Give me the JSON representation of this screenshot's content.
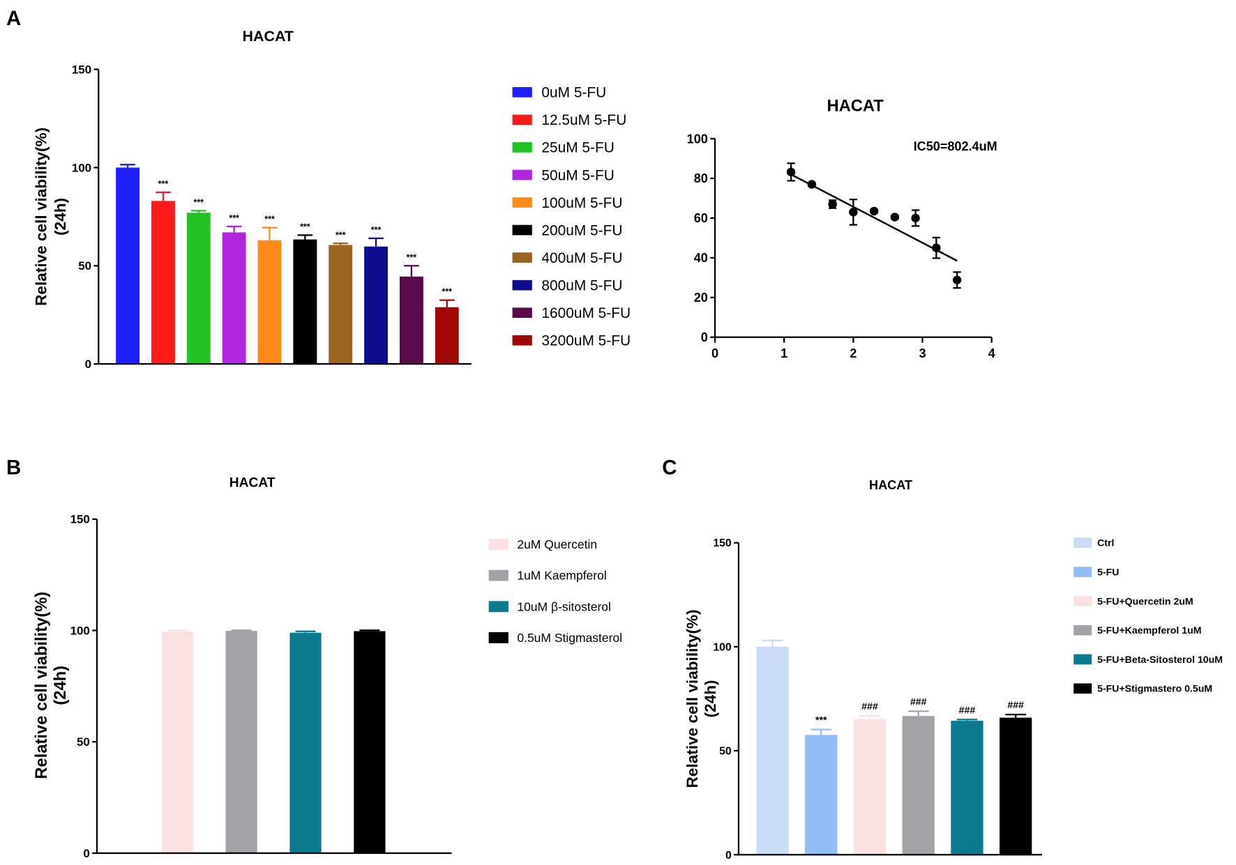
{
  "panels": {
    "a": "A",
    "b": "B",
    "c": "C"
  },
  "chart_data": [
    {
      "type": "bar",
      "title": "HACAT",
      "ylabel": [
        "Relative cell viability(%)",
        "(24h)"
      ],
      "ylim": [
        0,
        150
      ],
      "yticks": [
        0,
        50,
        100,
        150
      ],
      "categories": [
        "0uM 5-FU",
        "12.5uM 5-FU",
        "25uM 5-FU",
        "50uM 5-FU",
        "100uM 5-FU",
        "200uM 5-FU",
        "400uM 5-FU",
        "800uM 5-FU",
        "1600uM 5-FU",
        "3200uM 5-FU"
      ],
      "values": [
        100,
        83,
        77,
        67,
        63,
        63.4,
        60.6,
        59.8,
        44.5,
        28.9
      ],
      "errors": [
        1.5,
        4.4,
        1,
        3,
        6.4,
        2.2,
        0.8,
        4.2,
        5.5,
        3.6
      ],
      "annotations": [
        "",
        "***",
        "***",
        "***",
        "***",
        "***",
        "***",
        "***",
        "***",
        "***"
      ],
      "colors": [
        "#1f1fff",
        "#ff1a1a",
        "#22c222",
        "#b025e0",
        "#ff8a1c",
        "#000000",
        "#9a6320",
        "#0c0c8c",
        "#5c0a4e",
        "#a00808"
      ],
      "legend": "right"
    },
    {
      "type": "scatter",
      "title": "HACAT",
      "xlim": [
        0,
        4
      ],
      "ylim": [
        0,
        100
      ],
      "xticks": [
        0,
        1,
        2,
        3,
        4
      ],
      "yticks": [
        0,
        20,
        40,
        60,
        80,
        100
      ],
      "x": [
        1.1,
        1.4,
        1.7,
        2.0,
        2.3,
        2.6,
        2.9,
        3.2,
        3.5
      ],
      "y": [
        83.2,
        77,
        67,
        63,
        63.5,
        60.5,
        60,
        45,
        28.8
      ],
      "errors": [
        4.4,
        0.8,
        2,
        6.4,
        0.8,
        0.8,
        4,
        5.2,
        4
      ],
      "fit_line": {
        "x": [
          1.1,
          3.5
        ],
        "y": [
          82,
          38.5
        ]
      },
      "annotation": "IC50=802.4uM"
    },
    {
      "type": "bar",
      "title": "HACAT",
      "ylabel": [
        "Relative cell viability(%)",
        "(24h)"
      ],
      "ylim": [
        0,
        150
      ],
      "yticks": [
        0,
        50,
        100,
        150
      ],
      "categories": [
        "2uM Quercetin",
        "1uM Kaempferol",
        "10uM β-sitosterol",
        "0.5uM Stigmasterol"
      ],
      "values": [
        99.5,
        99.8,
        99,
        99.7
      ],
      "errors": [
        0.5,
        0.3,
        0.6,
        0.4
      ],
      "colors": [
        "#fbe0e1",
        "#a3a3a7",
        "#0c7b90",
        "#000000"
      ],
      "legend": "right"
    },
    {
      "type": "bar",
      "title": "HACAT",
      "ylabel": [
        "Relative cell viability(%)",
        "(24h)"
      ],
      "ylim": [
        0,
        150
      ],
      "yticks": [
        0,
        50,
        100,
        150
      ],
      "categories": [
        "Ctrl",
        "5-FU",
        "5-FU+Quercetin 2uM",
        "5-FU+Kaempferol 1uM",
        "5-FU+Beta-Sitosterol 10uM",
        "5-FU+Stigmastero 0.5uM"
      ],
      "values": [
        100,
        57.6,
        65.2,
        66.7,
        64.4,
        65.9
      ],
      "errors": [
        3,
        2.6,
        1.6,
        2.3,
        0.6,
        1.5
      ],
      "annotations": [
        "",
        "***",
        "###",
        "###",
        "###",
        "###"
      ],
      "colors": [
        "#c9dcf6",
        "#90bdf4",
        "#fbe0e1",
        "#a3a3a7",
        "#0c7b90",
        "#000000"
      ],
      "legend": "right"
    }
  ]
}
